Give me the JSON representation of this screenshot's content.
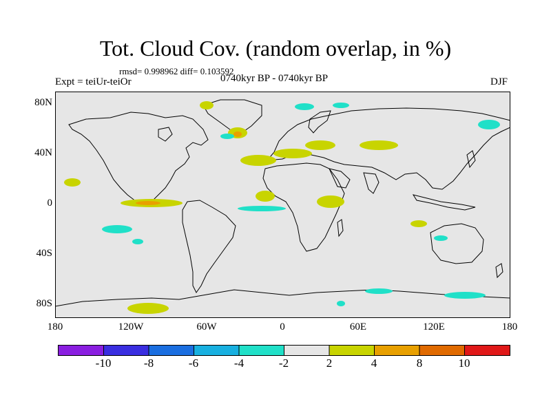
{
  "figure": {
    "title": "Tot. Cloud Cov. (random overlap, in %)",
    "stats": "rmsd= 0.998962 diff= 0.103592",
    "experiment": "Expt = teiUr-teiOr",
    "period": "0740kyr BP - 0740kyr BP",
    "season": "DJF"
  },
  "axes": {
    "y_ticks": [
      "80N",
      "40N",
      "0",
      "40S",
      "80S"
    ],
    "x_ticks": [
      "180",
      "120W",
      "60W",
      "0",
      "60E",
      "120E",
      "180"
    ]
  },
  "colorbar": {
    "colors": [
      "#8a1ee0",
      "#3a2ee0",
      "#1a6ee0",
      "#18b0e0",
      "#20e0c8",
      "#e6e6e6",
      "#c8d400",
      "#e8a000",
      "#e06a00",
      "#e01818"
    ],
    "labels": [
      "-10",
      "-8",
      "-6",
      "-4",
      "-2",
      "2",
      "4",
      "8",
      "10"
    ]
  },
  "style": {
    "ocean_bg": "#e6e6e6",
    "positive_color": "#c8d400",
    "positive_strong_color": "#e8a000",
    "negative_color": "#20e0c8"
  }
}
